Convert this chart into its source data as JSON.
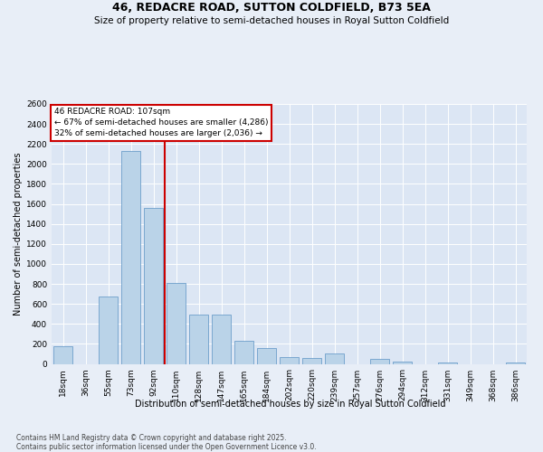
{
  "title": "46, REDACRE ROAD, SUTTON COLDFIELD, B73 5EA",
  "subtitle": "Size of property relative to semi-detached houses in Royal Sutton Coldfield",
  "xlabel": "Distribution of semi-detached houses by size in Royal Sutton Coldfield",
  "ylabel": "Number of semi-detached properties",
  "categories": [
    "18sqm",
    "36sqm",
    "55sqm",
    "73sqm",
    "92sqm",
    "110sqm",
    "128sqm",
    "147sqm",
    "165sqm",
    "184sqm",
    "202sqm",
    "220sqm",
    "239sqm",
    "257sqm",
    "276sqm",
    "294sqm",
    "312sqm",
    "331sqm",
    "349sqm",
    "368sqm",
    "386sqm"
  ],
  "values": [
    180,
    0,
    670,
    2130,
    1560,
    810,
    490,
    490,
    230,
    155,
    70,
    60,
    100,
    0,
    50,
    20,
    0,
    10,
    0,
    0,
    10
  ],
  "bar_color": "#bad3e8",
  "bar_edge_color": "#5b92c4",
  "vline_color": "#cc0000",
  "annotation_line1": "46 REDACRE ROAD: 107sqm",
  "annotation_line2": "← 67% of semi-detached houses are smaller (4,286)",
  "annotation_line3": "32% of semi-detached houses are larger (2,036) →",
  "ylim": [
    0,
    2600
  ],
  "yticks": [
    0,
    200,
    400,
    600,
    800,
    1000,
    1200,
    1400,
    1600,
    1800,
    2000,
    2200,
    2400,
    2600
  ],
  "bg_color": "#e8eef7",
  "plot_bg_color": "#dce6f4",
  "footer_text": "Contains HM Land Registry data © Crown copyright and database right 2025.\nContains public sector information licensed under the Open Government Licence v3.0.",
  "title_fontsize": 9,
  "subtitle_fontsize": 7.5,
  "tick_fontsize": 6.5,
  "ylabel_fontsize": 7,
  "xlabel_fontsize": 7,
  "footer_fontsize": 5.5,
  "annot_fontsize": 6.5
}
